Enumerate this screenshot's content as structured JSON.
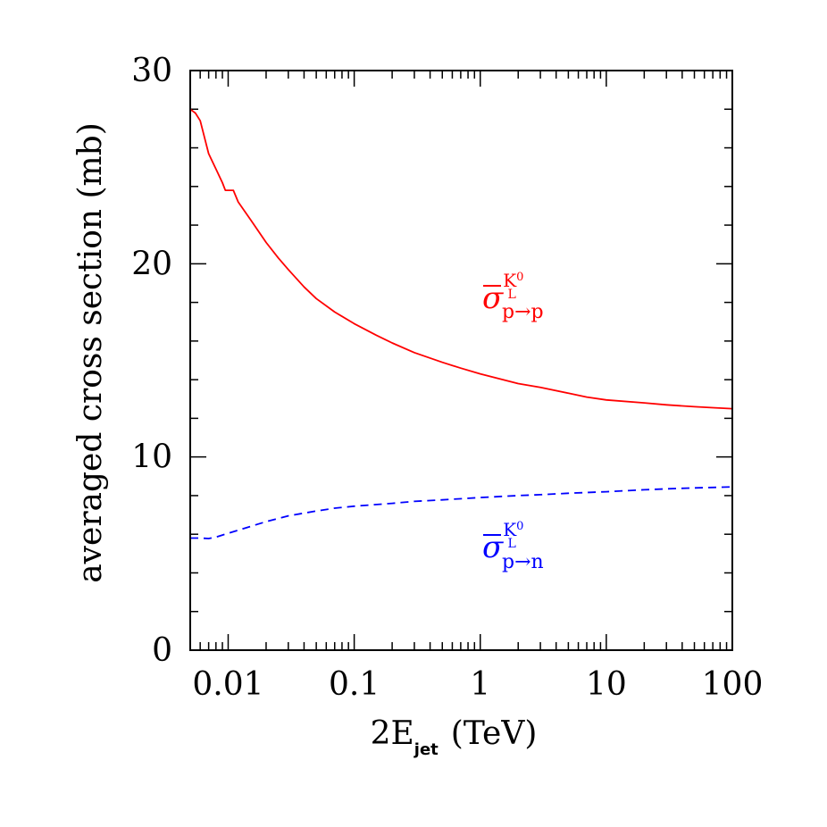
{
  "chart_data": {
    "type": "line",
    "xscale": "log",
    "xlim": [
      0.005,
      100
    ],
    "ylim": [
      0,
      30
    ],
    "xlabel": {
      "main": "2E",
      "sub": "jet",
      "unit": "(TeV)"
    },
    "ylabel": "averaged cross section  (mb)",
    "xticks": [
      {
        "value": 0.01,
        "label": "0.01"
      },
      {
        "value": 0.1,
        "label": "0.1"
      },
      {
        "value": 1,
        "label": "1"
      },
      {
        "value": 10,
        "label": "10"
      },
      {
        "value": 100,
        "label": "100"
      }
    ],
    "yticks": [
      {
        "value": 0,
        "label": "0"
      },
      {
        "value": 10,
        "label": "10"
      },
      {
        "value": 20,
        "label": "20"
      },
      {
        "value": 30,
        "label": "30"
      }
    ],
    "series": [
      {
        "label": {
          "base": "σ",
          "sup": "K",
          "sup_sup": "0",
          "sup_sub": "L",
          "sub": "p→p"
        },
        "color": "#ff0000",
        "dash": "solid",
        "x": [
          0.005,
          0.0055,
          0.006,
          0.007,
          0.008,
          0.009,
          0.0095,
          0.011,
          0.012,
          0.015,
          0.02,
          0.025,
          0.03,
          0.04,
          0.05,
          0.07,
          0.1,
          0.15,
          0.2,
          0.3,
          0.5,
          0.7,
          1,
          2,
          3,
          5,
          7,
          10,
          20,
          30,
          50,
          70,
          100
        ],
        "y": [
          28.0,
          27.8,
          27.4,
          25.7,
          24.9,
          24.2,
          23.8,
          23.8,
          23.2,
          22.3,
          21.1,
          20.3,
          19.7,
          18.8,
          18.2,
          17.5,
          16.9,
          16.3,
          15.9,
          15.4,
          14.9,
          14.6,
          14.3,
          13.8,
          13.6,
          13.3,
          13.1,
          12.95,
          12.8,
          12.7,
          12.6,
          12.55,
          12.5
        ]
      },
      {
        "label": {
          "base": "σ",
          "sup": "K",
          "sup_sup": "0",
          "sup_sub": "L",
          "sub": "p→n"
        },
        "color": "#0000ff",
        "dash": "dashed",
        "x": [
          0.005,
          0.006,
          0.007,
          0.008,
          0.01,
          0.015,
          0.02,
          0.03,
          0.05,
          0.07,
          0.1,
          0.2,
          0.3,
          0.5,
          1,
          2,
          3,
          5,
          10,
          20,
          30,
          50,
          70,
          100
        ],
        "y": [
          5.8,
          5.8,
          5.78,
          5.85,
          6.05,
          6.4,
          6.65,
          6.95,
          7.2,
          7.35,
          7.45,
          7.6,
          7.7,
          7.78,
          7.9,
          8.0,
          8.05,
          8.12,
          8.2,
          8.3,
          8.35,
          8.4,
          8.42,
          8.45
        ]
      }
    ]
  }
}
